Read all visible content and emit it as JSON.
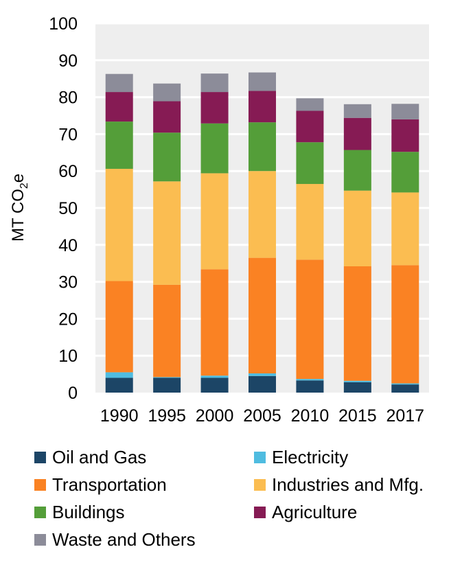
{
  "chart_data": {
    "type": "bar",
    "stacked": true,
    "categories": [
      "1990",
      "1995",
      "2000",
      "2005",
      "2010",
      "2015",
      "2017"
    ],
    "ylabel_main": "MT CO",
    "ylabel_sub": "2",
    "ylabel_tail": "e",
    "ylim": [
      0,
      100
    ],
    "yticks": [
      0,
      10,
      20,
      30,
      40,
      50,
      60,
      70,
      80,
      90,
      100
    ],
    "grid": true,
    "legend_position": "bottom",
    "series": [
      {
        "name": "Oil and Gas",
        "color": "#1c4566",
        "values": [
          4.0,
          4.0,
          4.0,
          4.5,
          3.3,
          2.8,
          2.2
        ]
      },
      {
        "name": "Electricity",
        "color": "#4fbce0",
        "values": [
          1.5,
          0.2,
          0.6,
          0.7,
          0.4,
          0.4,
          0.3
        ]
      },
      {
        "name": "Transportation",
        "color": "#fa8223",
        "values": [
          24.7,
          25.0,
          28.8,
          31.3,
          32.3,
          31.0,
          32.0
        ]
      },
      {
        "name": "Industries and Mfg.",
        "color": "#fbbd51",
        "values": [
          30.4,
          28.0,
          26.0,
          23.5,
          20.5,
          20.5,
          19.7
        ]
      },
      {
        "name": "Buildings",
        "color": "#549e39",
        "values": [
          12.8,
          13.2,
          13.5,
          13.2,
          11.3,
          11.0,
          11.0
        ]
      },
      {
        "name": "Agriculture",
        "color": "#861b54",
        "values": [
          8.0,
          8.5,
          8.5,
          8.5,
          8.5,
          8.7,
          8.8
        ]
      },
      {
        "name": "Waste and Others",
        "color": "#8c8c99",
        "values": [
          4.9,
          4.8,
          5.0,
          5.0,
          3.4,
          3.7,
          4.2
        ]
      }
    ]
  }
}
